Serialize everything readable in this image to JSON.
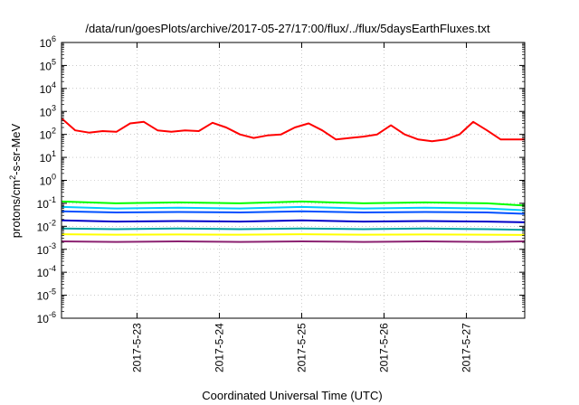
{
  "chart_data": {
    "type": "line",
    "title": "/data/run/goesPlots/archive/2017-05-27/17:00/flux/../flux/5daysEarthFluxes.txt",
    "xlabel": "Coordinated Universal Time (UTC)",
    "ylabel_base": "protons/cm",
    "ylabel_sup": "2",
    "ylabel_rest": "-s-sr-MeV",
    "yscale": "log",
    "ylim": [
      1e-06,
      1000000.0
    ],
    "y_tick_exponents": [
      "-6",
      "-5",
      "-4",
      "-3",
      "-2",
      "-1",
      "0",
      "1",
      "2",
      "3",
      "4",
      "5",
      "6"
    ],
    "xlim": [
      "2017-05-22T02:00",
      "2017-05-27T17:00"
    ],
    "x_ticks": [
      {
        "label": "2017-5-23",
        "value": "2017-05-23T00:00"
      },
      {
        "label": "2017-5-24",
        "value": "2017-05-24T00:00"
      },
      {
        "label": "2017-5-25",
        "value": "2017-05-25T00:00"
      },
      {
        "label": "2017-5-26",
        "value": "2017-05-26T00:00"
      },
      {
        "label": "2017-5-27",
        "value": "2017-05-27T00:00"
      }
    ],
    "grid": true,
    "series": [
      {
        "color": "#ff0000",
        "x": [
          "2017-05-22T02:00",
          "2017-05-22T06:00",
          "2017-05-22T10:00",
          "2017-05-22T14:00",
          "2017-05-22T18:00",
          "2017-05-22T22:00",
          "2017-05-23T02:00",
          "2017-05-23T06:00",
          "2017-05-23T10:00",
          "2017-05-23T14:00",
          "2017-05-23T18:00",
          "2017-05-23T22:00",
          "2017-05-24T02:00",
          "2017-05-24T06:00",
          "2017-05-24T10:00",
          "2017-05-24T14:00",
          "2017-05-24T18:00",
          "2017-05-24T22:00",
          "2017-05-25T02:00",
          "2017-05-25T06:00",
          "2017-05-25T10:00",
          "2017-05-25T14:00",
          "2017-05-25T18:00",
          "2017-05-25T22:00",
          "2017-05-26T02:00",
          "2017-05-26T06:00",
          "2017-05-26T10:00",
          "2017-05-26T14:00",
          "2017-05-26T18:00",
          "2017-05-26T22:00",
          "2017-05-27T02:00",
          "2017-05-27T06:00",
          "2017-05-27T10:00",
          "2017-05-27T14:00",
          "2017-05-27T17:00"
        ],
        "values": [
          500,
          150,
          120,
          140,
          130,
          300,
          350,
          150,
          130,
          150,
          140,
          320,
          200,
          100,
          70,
          90,
          100,
          200,
          300,
          150,
          60,
          70,
          80,
          100,
          250,
          100,
          60,
          50,
          60,
          100,
          350,
          150,
          60,
          60,
          60
        ]
      },
      {
        "color": "#00ff00",
        "x": [
          "2017-05-22T02:00",
          "2017-05-22T18:00",
          "2017-05-23T12:00",
          "2017-05-24T06:00",
          "2017-05-25T00:00",
          "2017-05-25T18:00",
          "2017-05-26T12:00",
          "2017-05-27T06:00",
          "2017-05-27T17:00"
        ],
        "values": [
          0.12,
          0.1,
          0.11,
          0.1,
          0.12,
          0.1,
          0.11,
          0.1,
          0.08
        ]
      },
      {
        "color": "#00c8ff",
        "x": [
          "2017-05-22T02:00",
          "2017-05-22T18:00",
          "2017-05-23T12:00",
          "2017-05-24T06:00",
          "2017-05-25T00:00",
          "2017-05-25T18:00",
          "2017-05-26T12:00",
          "2017-05-27T06:00",
          "2017-05-27T17:00"
        ],
        "values": [
          0.07,
          0.06,
          0.065,
          0.06,
          0.07,
          0.06,
          0.065,
          0.06,
          0.05
        ]
      },
      {
        "color": "#0050ff",
        "x": [
          "2017-05-22T02:00",
          "2017-05-22T18:00",
          "2017-05-23T12:00",
          "2017-05-24T06:00",
          "2017-05-25T00:00",
          "2017-05-25T18:00",
          "2017-05-26T12:00",
          "2017-05-27T06:00",
          "2017-05-27T17:00"
        ],
        "values": [
          0.045,
          0.04,
          0.042,
          0.04,
          0.045,
          0.04,
          0.042,
          0.04,
          0.035
        ]
      },
      {
        "color": "#0000c8",
        "x": [
          "2017-05-22T02:00",
          "2017-05-22T18:00",
          "2017-05-23T12:00",
          "2017-05-24T06:00",
          "2017-05-25T00:00",
          "2017-05-25T18:00",
          "2017-05-26T12:00",
          "2017-05-27T06:00",
          "2017-05-27T17:00"
        ],
        "values": [
          0.018,
          0.016,
          0.017,
          0.016,
          0.018,
          0.016,
          0.017,
          0.016,
          0.015
        ]
      },
      {
        "color": "#00a0a0",
        "x": [
          "2017-05-22T02:00",
          "2017-05-22T18:00",
          "2017-05-23T12:00",
          "2017-05-24T06:00",
          "2017-05-25T00:00",
          "2017-05-25T18:00",
          "2017-05-26T12:00",
          "2017-05-27T06:00",
          "2017-05-27T17:00"
        ],
        "values": [
          0.008,
          0.0075,
          0.008,
          0.0075,
          0.008,
          0.0075,
          0.008,
          0.0075,
          0.007
        ]
      },
      {
        "color": "#ffff00",
        "x": [
          "2017-05-22T02:00",
          "2017-05-22T18:00",
          "2017-05-23T12:00",
          "2017-05-24T06:00",
          "2017-05-25T00:00",
          "2017-05-25T18:00",
          "2017-05-26T12:00",
          "2017-05-27T06:00",
          "2017-05-27T17:00"
        ],
        "values": [
          0.0045,
          0.0043,
          0.0044,
          0.0043,
          0.0045,
          0.0043,
          0.0044,
          0.0043,
          0.0042
        ]
      },
      {
        "color": "#8b2070",
        "x": [
          "2017-05-22T02:00",
          "2017-05-22T18:00",
          "2017-05-23T12:00",
          "2017-05-24T06:00",
          "2017-05-25T00:00",
          "2017-05-25T18:00",
          "2017-05-26T12:00",
          "2017-05-27T06:00",
          "2017-05-27T17:00"
        ],
        "values": [
          0.0022,
          0.0021,
          0.0022,
          0.0021,
          0.0022,
          0.0021,
          0.0022,
          0.0021,
          0.0022
        ]
      }
    ]
  }
}
